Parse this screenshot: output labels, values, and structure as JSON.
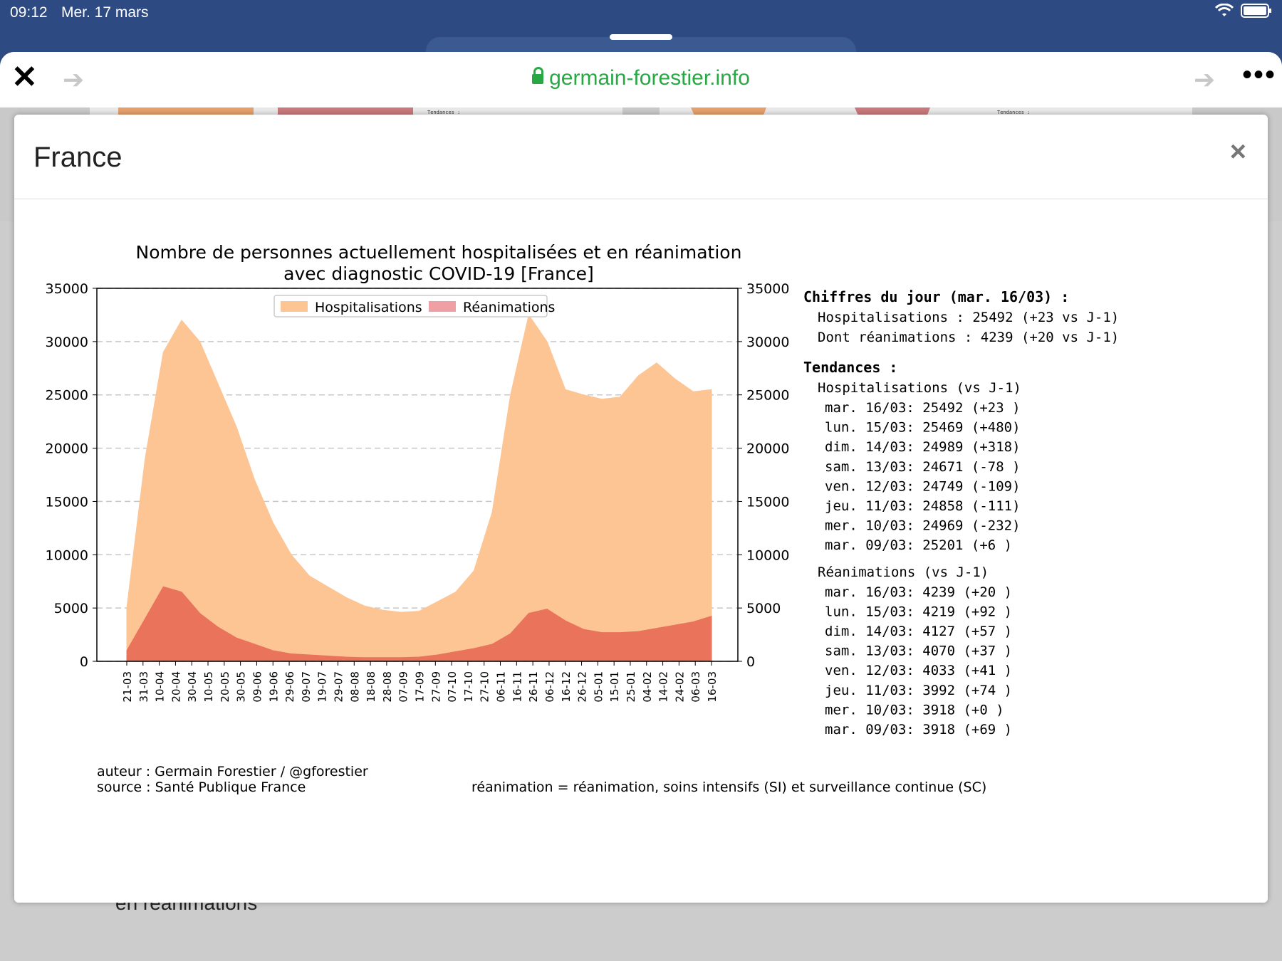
{
  "status": {
    "time": "09:12",
    "date": "Mer. 17 mars"
  },
  "browser": {
    "url": "germain-forestier.info"
  },
  "background": {
    "heading": "en réanimations"
  },
  "dialog": {
    "title": "France",
    "close": "×"
  },
  "chart_data": {
    "type": "area",
    "title_line1": "Nombre de personnes actuellement hospitalisées et en réanimation",
    "title_line2": "avec diagnostic COVID-19 [France]",
    "ylim": [
      0,
      35000
    ],
    "yticks": [
      "0",
      "5000",
      "10000",
      "15000",
      "20000",
      "25000",
      "30000",
      "35000"
    ],
    "xticks": [
      "21-03",
      "31-03",
      "10-04",
      "20-04",
      "30-04",
      "10-05",
      "20-05",
      "30-05",
      "09-06",
      "19-06",
      "29-06",
      "09-07",
      "19-07",
      "29-07",
      "08-08",
      "18-08",
      "28-08",
      "07-09",
      "17-09",
      "27-09",
      "07-10",
      "17-10",
      "27-10",
      "06-11",
      "16-11",
      "26-11",
      "06-12",
      "16-12",
      "26-12",
      "05-01",
      "15-01",
      "25-01",
      "04-02",
      "14-02",
      "24-02",
      "06-03",
      "16-03"
    ],
    "legend_position": "top-center",
    "grid": true,
    "series": [
      {
        "name": "Hospitalisations",
        "color": "#fdc594",
        "values": [
          5000,
          19000,
          29000,
          32000,
          30000,
          26000,
          22000,
          17000,
          13000,
          10000,
          8000,
          7000,
          6000,
          5200,
          4800,
          4600,
          4700,
          5600,
          6500,
          8500,
          14000,
          25000,
          32500,
          30000,
          25500,
          25000,
          24600,
          24800,
          26800,
          28000,
          26500,
          25300,
          25492
        ]
      },
      {
        "name": "Réanimations",
        "color": "#e9735b",
        "values": [
          1000,
          4000,
          7000,
          6500,
          4500,
          3200,
          2200,
          1600,
          1000,
          700,
          600,
          500,
          400,
          350,
          350,
          350,
          400,
          600,
          900,
          1200,
          1600,
          2600,
          4500,
          4900,
          3800,
          3000,
          2700,
          2700,
          2800,
          3100,
          3400,
          3700,
          4239
        ]
      }
    ],
    "annotations": {
      "author": "auteur : Germain Forestier / @gforestier",
      "source": "source : Santé Publique France",
      "note": "réanimation = réanimation, soins intensifs (SI) et surveillance continue (SC)"
    }
  },
  "side_panel": {
    "heading": "Chiffres du jour (mar. 16/03) :",
    "hosp_line": "Hospitalisations  : 25492 (+23 vs J-1)",
    "rea_line": "Dont réanimations : 4239  (+20 vs J-1)",
    "trends_heading": "Tendances :",
    "hosp_header": "Hospitalisations   (vs J-1)",
    "hosp_rows": [
      "mar. 16/03: 25492 (+23 )",
      "lun. 15/03: 25469 (+480)",
      "dim. 14/03: 24989 (+318)",
      "sam. 13/03: 24671 (-78 )",
      "ven. 12/03: 24749 (-109)",
      "jeu. 11/03: 24858 (-111)",
      "mer. 10/03: 24969 (-232)",
      "mar. 09/03: 25201 (+6  )"
    ],
    "rea_header": "Réanimations       (vs J-1)",
    "rea_rows": [
      "mar. 16/03: 4239  (+20 )",
      "lun. 15/03: 4219  (+92 )",
      "dim. 14/03: 4127  (+57 )",
      "sam. 13/03: 4070  (+37 )",
      "ven. 12/03: 4033  (+41 )",
      "jeu. 11/03: 3992  (+74 )",
      "mer. 10/03: 3918  (+0  )",
      "mar. 09/03: 3918  (+69 )"
    ]
  }
}
